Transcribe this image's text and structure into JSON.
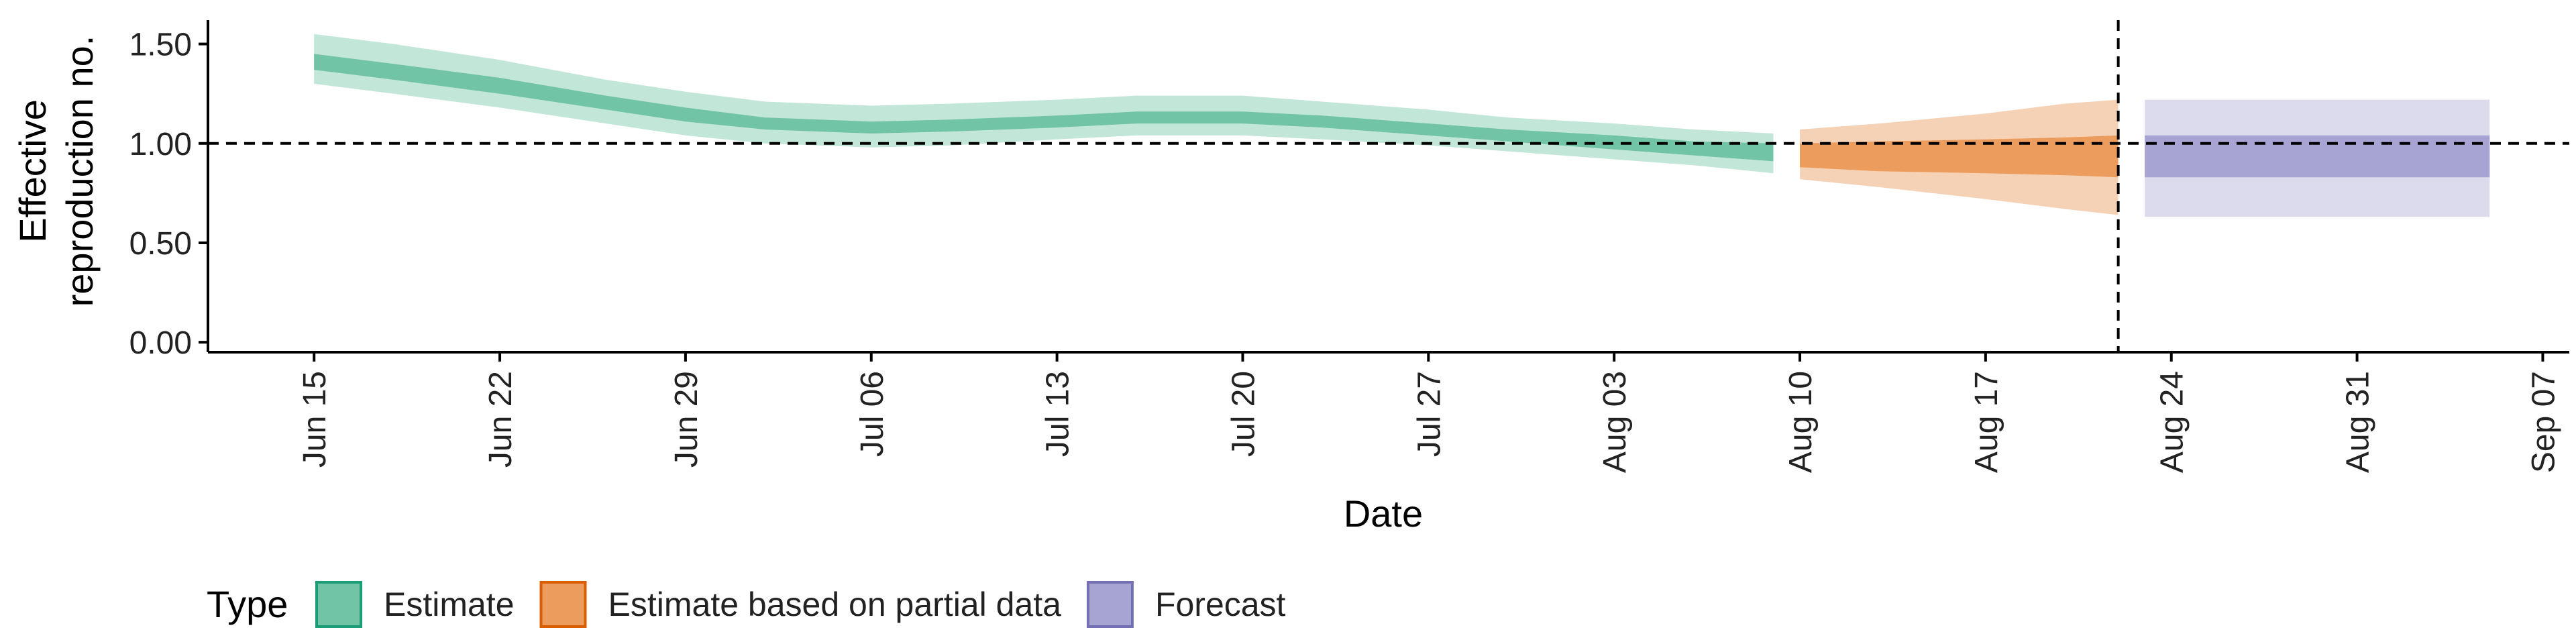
{
  "chart_data": {
    "type": "area",
    "xlabel": "Date",
    "ylabel": [
      "Effective",
      "reproduction no."
    ],
    "xlim": [
      "2020-06-11",
      "2020-09-08"
    ],
    "ylim": [
      -0.05,
      1.62
    ],
    "x_ticks": [
      "2020-06-15",
      "2020-06-22",
      "2020-06-29",
      "2020-07-06",
      "2020-07-13",
      "2020-07-20",
      "2020-07-27",
      "2020-08-03",
      "2020-08-10",
      "2020-08-17",
      "2020-08-24",
      "2020-08-31",
      "2020-09-07"
    ],
    "x_tick_labels": [
      "Jun 15",
      "Jun 22",
      "Jun 29",
      "Jul 06",
      "Jul 13",
      "Jul 20",
      "Jul 27",
      "Aug 03",
      "Aug 10",
      "Aug 17",
      "Aug 24",
      "Aug 31",
      "Sep 07"
    ],
    "y_ticks": [
      0,
      0.5,
      1.0,
      1.5
    ],
    "y_tick_labels": [
      "0.00",
      "0.50",
      "1.00",
      "1.50"
    ],
    "reference_line": {
      "axis": "y",
      "value": 1.0,
      "style": "dashed"
    },
    "forecast_start_line": {
      "axis": "x",
      "value": "2020-08-22",
      "style": "dashed"
    },
    "grid": false,
    "legend": {
      "title": "Type",
      "placement": "bottom-left",
      "entries": [
        {
          "label": "Estimate",
          "fill": "#71c4a6",
          "stroke": "#1b9e77"
        },
        {
          "label": "Estimate based on partial data",
          "fill": "#ec9d5e",
          "stroke": "#d95f02"
        },
        {
          "label": "Forecast",
          "fill": "#a7a3d2",
          "stroke": "#7570b3"
        }
      ]
    },
    "series": [
      {
        "name": "Estimate",
        "colors": {
          "outer": "#c2e6d8",
          "inner": "#71c4a6"
        },
        "points": [
          {
            "x": "2020-06-15",
            "lo90": 1.3,
            "lo50": 1.37,
            "hi50": 1.45,
            "hi90": 1.55
          },
          {
            "x": "2020-06-18",
            "lo90": 1.25,
            "lo50": 1.32,
            "hi50": 1.4,
            "hi90": 1.5
          },
          {
            "x": "2020-06-22",
            "lo90": 1.18,
            "lo50": 1.25,
            "hi50": 1.33,
            "hi90": 1.42
          },
          {
            "x": "2020-06-26",
            "lo90": 1.1,
            "lo50": 1.17,
            "hi50": 1.24,
            "hi90": 1.32
          },
          {
            "x": "2020-06-29",
            "lo90": 1.04,
            "lo50": 1.11,
            "hi50": 1.18,
            "hi90": 1.26
          },
          {
            "x": "2020-07-02",
            "lo90": 1.0,
            "lo50": 1.07,
            "hi50": 1.13,
            "hi90": 1.21
          },
          {
            "x": "2020-07-06",
            "lo90": 0.98,
            "lo50": 1.05,
            "hi50": 1.11,
            "hi90": 1.19
          },
          {
            "x": "2020-07-09",
            "lo90": 0.99,
            "lo50": 1.06,
            "hi50": 1.12,
            "hi90": 1.2
          },
          {
            "x": "2020-07-13",
            "lo90": 1.02,
            "lo50": 1.08,
            "hi50": 1.14,
            "hi90": 1.22
          },
          {
            "x": "2020-07-16",
            "lo90": 1.04,
            "lo50": 1.1,
            "hi50": 1.16,
            "hi90": 1.24
          },
          {
            "x": "2020-07-20",
            "lo90": 1.04,
            "lo50": 1.1,
            "hi50": 1.16,
            "hi90": 1.24
          },
          {
            "x": "2020-07-23",
            "lo90": 1.02,
            "lo50": 1.08,
            "hi50": 1.14,
            "hi90": 1.21
          },
          {
            "x": "2020-07-27",
            "lo90": 0.99,
            "lo50": 1.04,
            "hi50": 1.1,
            "hi90": 1.17
          },
          {
            "x": "2020-07-30",
            "lo90": 0.96,
            "lo50": 1.01,
            "hi50": 1.07,
            "hi90": 1.13
          },
          {
            "x": "2020-08-03",
            "lo90": 0.92,
            "lo50": 0.97,
            "hi50": 1.04,
            "hi90": 1.1
          },
          {
            "x": "2020-08-06",
            "lo90": 0.89,
            "lo50": 0.94,
            "hi50": 1.01,
            "hi90": 1.07
          },
          {
            "x": "2020-08-09",
            "lo90": 0.85,
            "lo50": 0.91,
            "hi50": 1.0,
            "hi90": 1.05
          }
        ]
      },
      {
        "name": "Estimate based on partial data",
        "colors": {
          "outer": "#f5d1b5",
          "inner": "#ec9d5e"
        },
        "points": [
          {
            "x": "2020-08-10",
            "lo90": 0.82,
            "lo50": 0.88,
            "hi50": 1.0,
            "hi90": 1.07
          },
          {
            "x": "2020-08-13",
            "lo90": 0.78,
            "lo50": 0.86,
            "hi50": 1.01,
            "hi90": 1.1
          },
          {
            "x": "2020-08-17",
            "lo90": 0.72,
            "lo50": 0.85,
            "hi50": 1.02,
            "hi90": 1.15
          },
          {
            "x": "2020-08-20",
            "lo90": 0.67,
            "lo50": 0.84,
            "hi50": 1.03,
            "hi90": 1.2
          },
          {
            "x": "2020-08-22",
            "lo90": 0.64,
            "lo50": 0.83,
            "hi50": 1.04,
            "hi90": 1.22
          }
        ]
      },
      {
        "name": "Forecast",
        "colors": {
          "outer": "#dcdaed",
          "inner": "#a7a3d2"
        },
        "points": [
          {
            "x": "2020-08-23",
            "lo90": 0.63,
            "lo50": 0.83,
            "hi50": 1.04,
            "hi90": 1.22
          },
          {
            "x": "2020-09-05",
            "lo90": 0.63,
            "lo50": 0.83,
            "hi50": 1.04,
            "hi90": 1.22
          }
        ]
      }
    ]
  }
}
